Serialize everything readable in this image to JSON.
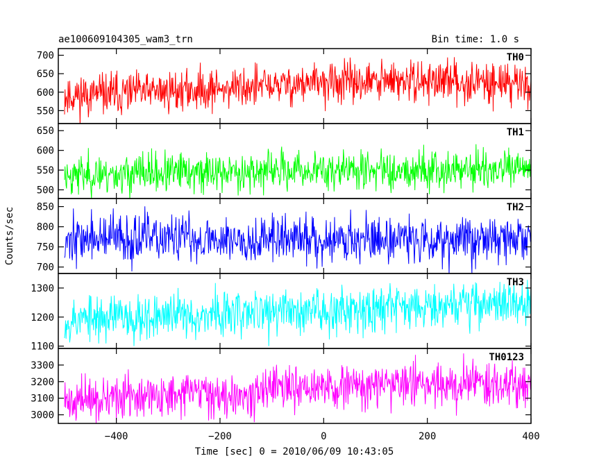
{
  "header": {
    "title": "ae100609104305_wam3_trn",
    "bin_time": "Bin time: 1.0 s"
  },
  "chart_data": {
    "type": "line",
    "xlabel": "Time [sec] 0 = 2010/06/09 10:43:05",
    "ylabel": "Counts/sec",
    "xlim": [
      -512,
      400
    ],
    "x_ticks": [
      -400,
      -200,
      0,
      200,
      400
    ],
    "x_tick_labels": [
      "−400",
      "−200",
      "0",
      "200",
      "400"
    ],
    "bin_time_s": 1.0,
    "grid": false,
    "panels": [
      {
        "name": "TH0",
        "color": "#ff0000",
        "ylim": [
          515,
          718
        ],
        "y_ticks": [
          550,
          600,
          650,
          700
        ],
        "y_tick_labels": [
          "550",
          "600",
          "650",
          "700"
        ],
        "trend": [
          [
            -500,
            590
          ],
          [
            -400,
            595
          ],
          [
            -200,
            610
          ],
          [
            0,
            625
          ],
          [
            200,
            630
          ],
          [
            400,
            625
          ]
        ],
        "noise_sd": 28,
        "seed": 11
      },
      {
        "name": "TH1",
        "color": "#00ff00",
        "ylim": [
          478,
          668
        ],
        "y_ticks": [
          500,
          550,
          600,
          650
        ],
        "y_tick_labels": [
          "500",
          "550",
          "600",
          "650"
        ],
        "trend": [
          [
            -500,
            538
          ],
          [
            -400,
            540
          ],
          [
            -200,
            545
          ],
          [
            0,
            550
          ],
          [
            200,
            552
          ],
          [
            400,
            550
          ]
        ],
        "noise_sd": 25,
        "seed": 23
      },
      {
        "name": "TH2",
        "color": "#0000ff",
        "ylim": [
          684,
          870
        ],
        "y_ticks": [
          700,
          750,
          800,
          850
        ],
        "y_tick_labels": [
          "700",
          "750",
          "800",
          "850"
        ],
        "trend": [
          [
            -500,
            770
          ],
          [
            -400,
            770
          ],
          [
            -200,
            770
          ],
          [
            0,
            770
          ],
          [
            200,
            770
          ],
          [
            400,
            770
          ]
        ],
        "noise_sd": 30,
        "seed": 37
      },
      {
        "name": "TH3",
        "color": "#00ffff",
        "ylim": [
          1092,
          1350
        ],
        "y_ticks": [
          1100,
          1200,
          1300
        ],
        "y_tick_labels": [
          "1100",
          "1200",
          "1300"
        ],
        "trend": [
          [
            -500,
            1190
          ],
          [
            -400,
            1200
          ],
          [
            -200,
            1210
          ],
          [
            0,
            1225
          ],
          [
            200,
            1245
          ],
          [
            400,
            1250
          ]
        ],
        "noise_sd": 40,
        "seed": 53
      },
      {
        "name": "TH0123",
        "color": "#ff00ff",
        "ylim": [
          2948,
          3400
        ],
        "y_ticks": [
          3000,
          3100,
          3200,
          3300
        ],
        "y_tick_labels": [
          "3000",
          "3100",
          "3200",
          "3300"
        ],
        "trend": [
          [
            -500,
            3080
          ],
          [
            -400,
            3100
          ],
          [
            -200,
            3130
          ],
          [
            0,
            3160
          ],
          [
            200,
            3190
          ],
          [
            400,
            3190
          ]
        ],
        "noise_sd": 65,
        "seed": 71
      }
    ]
  }
}
